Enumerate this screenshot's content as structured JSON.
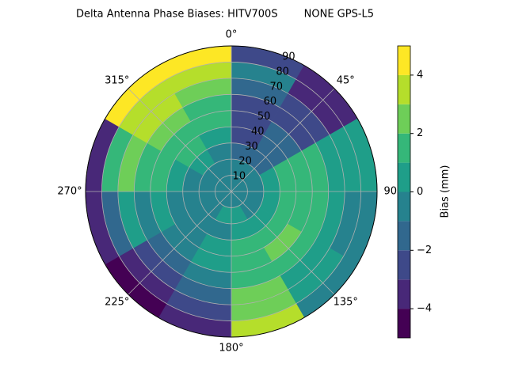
{
  "chart_data": {
    "type": "polar_contour",
    "title": "Delta Antenna Phase Biases: HITV700S        NONE GPS-L5",
    "colorbar_label": "Bias (mm)",
    "zenith_edges": [
      0,
      10,
      20,
      30,
      40,
      50,
      60,
      70,
      80,
      90
    ],
    "azimuth_edges": [
      0,
      30,
      60,
      90,
      120,
      150,
      180,
      210,
      240,
      270,
      300,
      330,
      360
    ],
    "z": [
      [
        -1,
        -1,
        -1,
        -1,
        -1,
        -1,
        -1,
        -1,
        -1,
        -1,
        -1,
        -1
      ],
      [
        -1,
        -1,
        -1,
        -1,
        -1,
        0,
        0,
        -1,
        -1,
        -1,
        -1,
        -1
      ],
      [
        -2,
        -2,
        0,
        0,
        0,
        0,
        -1,
        -1,
        -1,
        -1,
        0,
        -1
      ],
      [
        -3,
        -2,
        1,
        1,
        1,
        1,
        0,
        -1,
        -1,
        0,
        1,
        0
      ],
      [
        -3,
        -2,
        1,
        1,
        2,
        1,
        0,
        -1,
        0,
        1,
        1,
        1
      ],
      [
        -3,
        -3,
        1,
        1,
        1,
        1,
        -1,
        -2,
        -1,
        1,
        2,
        1
      ],
      [
        -2,
        -3,
        0,
        0,
        0,
        2,
        -2,
        -3,
        0,
        2,
        3,
        2
      ],
      [
        -1,
        -4,
        0,
        -1,
        0,
        2,
        -3,
        -4,
        -2,
        1,
        3,
        3
      ],
      [
        -3,
        -4,
        0,
        -1,
        -1,
        3,
        -4,
        -5,
        -4,
        -4,
        4,
        4
      ]
    ],
    "levels": [
      -5,
      -4,
      -3,
      -2,
      -1,
      0,
      1,
      2,
      3,
      4,
      5
    ],
    "colors": [
      "#440154",
      "#482878",
      "#3e4989",
      "#31688e",
      "#26828e",
      "#1f9e89",
      "#35b779",
      "#6ece58",
      "#b5de2b",
      "#fde725"
    ],
    "rlim": [
      0,
      90
    ],
    "rticks": [
      10,
      20,
      30,
      40,
      50,
      60,
      70,
      80,
      90
    ],
    "thetaticks": [
      {
        "value": 0,
        "label": "0°"
      },
      {
        "value": 45,
        "label": "45°"
      },
      {
        "value": 90,
        "label": "90°"
      },
      {
        "value": 135,
        "label": "135°"
      },
      {
        "value": 180,
        "label": "180°"
      },
      {
        "value": 225,
        "label": "225°"
      },
      {
        "value": 270,
        "label": "270°"
      },
      {
        "value": 315,
        "label": "315°"
      }
    ],
    "clim": [
      -5,
      5
    ],
    "cticks": [
      {
        "value": -4,
        "label": "−4"
      },
      {
        "value": -2,
        "label": "−2"
      },
      0,
      2,
      4
    ],
    "grid": true
  }
}
